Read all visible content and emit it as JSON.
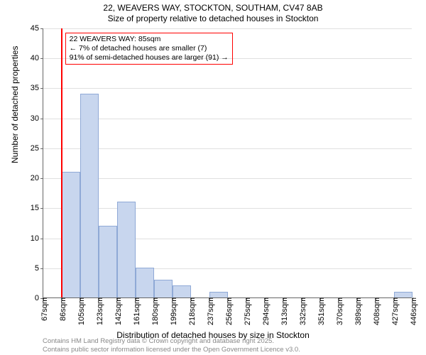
{
  "title": {
    "line1": "22, WEAVERS WAY, STOCKTON, SOUTHAM, CV47 8AB",
    "line2": "Size of property relative to detached houses in Stockton"
  },
  "y_axis": {
    "title": "Number of detached properties",
    "min": 0,
    "max": 45,
    "tick_step": 5,
    "ticks": [
      0,
      5,
      10,
      15,
      20,
      25,
      30,
      35,
      40,
      45
    ]
  },
  "x_axis": {
    "title": "Distribution of detached houses by size in Stockton",
    "start": 67,
    "bin_width": 19,
    "tick_labels": [
      "67sqm",
      "86sqm",
      "105sqm",
      "123sqm",
      "142sqm",
      "161sqm",
      "180sqm",
      "199sqm",
      "218sqm",
      "237sqm",
      "256sqm",
      "275sqm",
      "294sqm",
      "313sqm",
      "332sqm",
      "351sqm",
      "370sqm",
      "389sqm",
      "408sqm",
      "427sqm",
      "446sqm"
    ]
  },
  "chart": {
    "type": "histogram",
    "bar_fill": "#c8d6ee",
    "bar_stroke": "#8fa9d6",
    "grid_color": "#e0e0e0",
    "background": "#ffffff",
    "values": [
      0,
      21,
      34,
      12,
      16,
      5,
      3,
      2,
      0,
      1,
      0,
      0,
      0,
      0,
      0,
      0,
      0,
      0,
      0,
      1
    ]
  },
  "marker": {
    "value_sqm": 85,
    "color": "#ff0000"
  },
  "annotation": {
    "line1": "22 WEAVERS WAY: 85sqm",
    "line2": "← 7% of detached houses are smaller (7)",
    "line3": "91% of semi-detached houses are larger (91) →",
    "border_color": "#ff0000"
  },
  "footer": {
    "line1": "Contains HM Land Registry data © Crown copyright and database right 2025.",
    "line2": "Contains public sector information licensed under the Open Government Licence v3.0."
  },
  "style": {
    "title_fontsize": 12,
    "axis_label_fontsize": 12,
    "tick_fontsize": 11,
    "annotation_fontsize": 10.5,
    "footer_fontsize": 9.5,
    "footer_color": "#888888"
  }
}
